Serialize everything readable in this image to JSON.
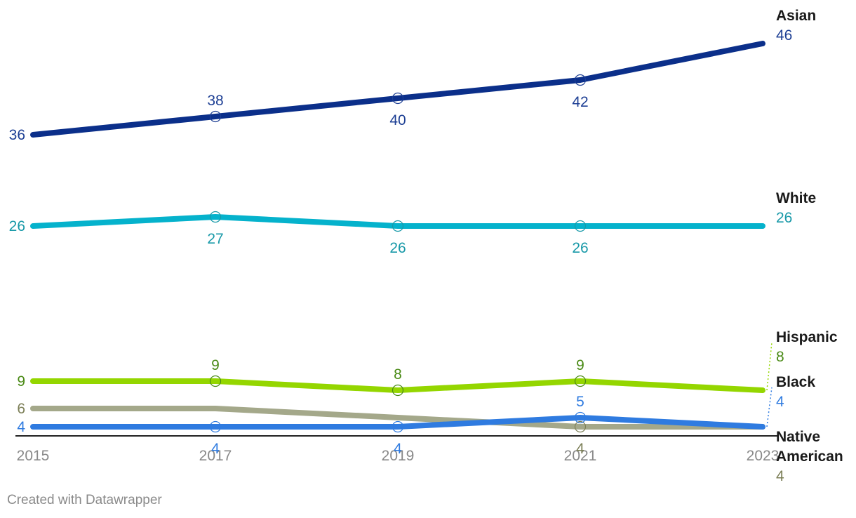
{
  "chart_data": {
    "type": "line",
    "x": [
      2015,
      2017,
      2019,
      2021,
      2023
    ],
    "x_tick_labels": [
      "2015",
      "2017",
      "2019",
      "2021",
      "2023"
    ],
    "xlim": [
      2015,
      2023
    ],
    "series": [
      {
        "name": "Asian",
        "values": [
          36,
          38,
          40,
          42,
          46
        ],
        "color": "#0b2f8a",
        "label_color": "#1d3f94",
        "value_labels": [
          "36",
          "38",
          "40",
          "42",
          "46"
        ],
        "label_pos": [
          "left",
          "above",
          "below",
          "below",
          "end"
        ]
      },
      {
        "name": "White",
        "values": [
          26,
          27,
          26,
          26,
          26
        ],
        "color": "#05b2cc",
        "label_color": "#1899a8",
        "value_labels": [
          "26",
          "27",
          "26",
          "26",
          "26"
        ],
        "label_pos": [
          "left",
          "below",
          "below",
          "below",
          "end"
        ]
      },
      {
        "name": "Hispanic",
        "values": [
          9,
          9,
          8,
          9,
          8
        ],
        "color": "#94d600",
        "label_color": "#4a8a16",
        "value_labels": [
          "9",
          "9",
          "8",
          "9",
          "8"
        ],
        "label_pos": [
          "left",
          "above",
          "above",
          "above",
          "end"
        ]
      },
      {
        "name": "Native American",
        "values": [
          6,
          6,
          5,
          4,
          4
        ],
        "color": "#a4a88a",
        "label_color": "#7c7f57",
        "value_labels": [
          "6",
          null,
          null,
          "4",
          "4"
        ],
        "label_pos": [
          "left",
          null,
          null,
          "below",
          "end"
        ]
      },
      {
        "name": "Black",
        "values": [
          4,
          4,
          4,
          5,
          4
        ],
        "color": "#2f7be0",
        "label_color": "#2f7be0",
        "value_labels": [
          "4",
          "4",
          "4",
          "5",
          "4"
        ],
        "label_pos": [
          "left",
          "below",
          "below",
          "above",
          "end"
        ]
      }
    ],
    "markers": [
      {
        "series": "Asian",
        "x": 2017
      },
      {
        "series": "Asian",
        "x": 2019
      },
      {
        "series": "Asian",
        "x": 2021
      },
      {
        "series": "White",
        "x": 2017
      },
      {
        "series": "White",
        "x": 2019
      },
      {
        "series": "White",
        "x": 2021
      },
      {
        "series": "Hispanic",
        "x": 2017
      },
      {
        "series": "Hispanic",
        "x": 2019
      },
      {
        "series": "Hispanic",
        "x": 2021
      },
      {
        "series": "Native American",
        "x": 2021
      },
      {
        "series": "Black",
        "x": 2017
      },
      {
        "series": "Black",
        "x": 2019
      },
      {
        "series": "Black",
        "x": 2021
      }
    ]
  },
  "credit": "Created with Datawrapper"
}
